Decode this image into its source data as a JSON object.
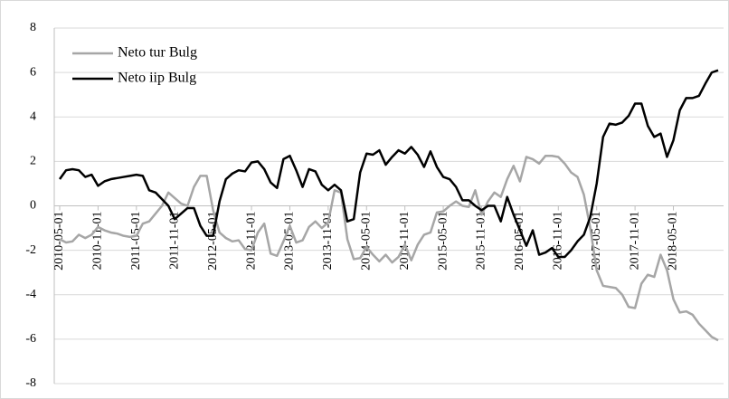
{
  "chart_data": {
    "type": "line",
    "categories": [
      "2010-05-01",
      null,
      null,
      null,
      null,
      null,
      "2010-11-01",
      null,
      null,
      null,
      null,
      null,
      "2011-05-01",
      null,
      null,
      null,
      null,
      null,
      "2011-11-01",
      null,
      null,
      null,
      null,
      null,
      "2012-05-01",
      null,
      null,
      null,
      null,
      null,
      "2012-11-01",
      null,
      null,
      null,
      null,
      null,
      "2013-05-01",
      null,
      null,
      null,
      null,
      null,
      "2013-11-01",
      null,
      null,
      null,
      null,
      null,
      "2014-05-01",
      null,
      null,
      null,
      null,
      null,
      "2014-11-01",
      null,
      null,
      null,
      null,
      null,
      "2015-05-01",
      null,
      null,
      null,
      null,
      null,
      "2015-11-01",
      null,
      null,
      null,
      null,
      null,
      "2016-05-01",
      null,
      null,
      null,
      null,
      null,
      "2016-11-01",
      null,
      null,
      null,
      null,
      null,
      "2017-05-01",
      null,
      null,
      null,
      null,
      null,
      "2017-11-01",
      null,
      null,
      null,
      null,
      null,
      "2018-05-01",
      null,
      null,
      null,
      null,
      null,
      null,
      null
    ],
    "series": [
      {
        "name": "Neto tur Bulg",
        "color": "#a6a6a6",
        "values": [
          -1.5,
          -1.65,
          -1.6,
          -1.3,
          -1.45,
          -1.3,
          -0.95,
          -1.1,
          -1.2,
          -1.25,
          -1.35,
          -1.4,
          -1.35,
          -0.8,
          -0.7,
          -0.35,
          0.0,
          0.6,
          0.35,
          0.1,
          0.0,
          0.85,
          1.35,
          1.35,
          -0.2,
          -1.2,
          -1.45,
          -1.6,
          -1.55,
          -1.95,
          -2.0,
          -1.2,
          -0.8,
          -2.15,
          -2.25,
          -1.6,
          -0.9,
          -1.65,
          -1.55,
          -0.95,
          -0.7,
          -1.0,
          -0.75,
          0.7,
          0.6,
          -1.5,
          -2.4,
          -2.35,
          -1.85,
          -2.2,
          -2.5,
          -2.2,
          -2.55,
          -2.3,
          -1.75,
          -2.45,
          -1.75,
          -1.3,
          -1.2,
          -0.3,
          -0.25,
          0.0,
          0.2,
          0.0,
          -0.05,
          0.7,
          -0.4,
          0.2,
          0.6,
          0.4,
          1.2,
          1.8,
          1.1,
          2.2,
          2.1,
          1.9,
          2.25,
          2.25,
          2.2,
          1.9,
          1.5,
          1.3,
          0.5,
          -1.0,
          -2.9,
          -3.6,
          -3.65,
          -3.7,
          -4.0,
          -4.55,
          -4.6,
          -3.5,
          -3.1,
          -3.2,
          -2.2,
          -2.9,
          -4.2,
          -4.8,
          -4.75,
          -4.9,
          -5.3,
          -5.6,
          -5.9,
          -6.05
        ]
      },
      {
        "name": "Neto iip Bulg",
        "color": "#000000",
        "values": [
          1.2,
          1.6,
          1.65,
          1.6,
          1.3,
          1.4,
          0.9,
          1.1,
          1.2,
          1.25,
          1.3,
          1.35,
          1.4,
          1.35,
          0.7,
          0.6,
          0.3,
          0.0,
          -0.6,
          -0.35,
          -0.1,
          -0.1,
          -0.9,
          -1.35,
          -1.35,
          0.2,
          1.2,
          1.45,
          1.6,
          1.55,
          1.95,
          2.0,
          1.65,
          1.05,
          0.8,
          2.1,
          2.25,
          1.6,
          0.85,
          1.65,
          1.55,
          0.95,
          0.7,
          0.95,
          0.7,
          -0.7,
          -0.6,
          1.5,
          2.35,
          2.3,
          2.5,
          1.85,
          2.2,
          2.5,
          2.35,
          2.65,
          2.3,
          1.75,
          2.45,
          1.75,
          1.3,
          1.2,
          0.85,
          0.25,
          0.25,
          0.0,
          -0.2,
          0.0,
          0.0,
          -0.7,
          0.4,
          -0.4,
          -1.1,
          -1.8,
          -1.1,
          -2.2,
          -2.1,
          -1.9,
          -2.3,
          -2.3,
          -2.0,
          -1.6,
          -1.3,
          -0.5,
          1.0,
          3.1,
          3.7,
          3.65,
          3.75,
          4.05,
          4.6,
          4.6,
          3.6,
          3.1,
          3.25,
          2.2,
          2.95,
          4.3,
          4.85,
          4.85,
          4.95,
          5.5,
          6.0,
          6.1
        ]
      }
    ],
    "ylim": [
      -8,
      8
    ],
    "yticks": [
      -8,
      -6,
      -4,
      -2,
      0,
      2,
      4,
      6,
      8
    ],
    "grid": true,
    "legend": "top-left"
  }
}
